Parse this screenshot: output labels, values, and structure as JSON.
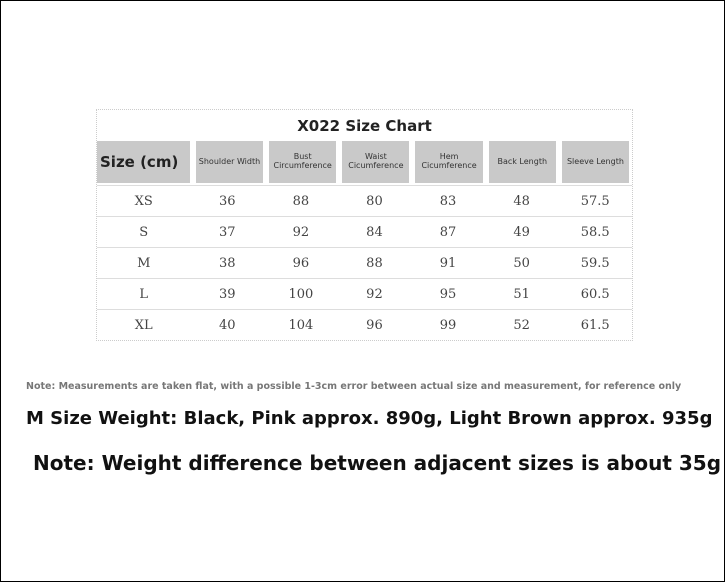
{
  "table": {
    "title": "X022 Size Chart",
    "headers": [
      "Size (cm)",
      "Shoulder Width",
      "Bust Circumference",
      "Waist Cicumference",
      "Hem Cicumference",
      "Back Length",
      "Sleeve Length"
    ],
    "rows": [
      [
        "XS",
        "36",
        "88",
        "80",
        "83",
        "48",
        "57.5"
      ],
      [
        "S",
        "37",
        "92",
        "84",
        "87",
        "49",
        "58.5"
      ],
      [
        "M",
        "38",
        "96",
        "88",
        "91",
        "50",
        "59.5"
      ],
      [
        "L",
        "39",
        "100",
        "92",
        "95",
        "51",
        "60.5"
      ],
      [
        "XL",
        "40",
        "104",
        "96",
        "99",
        "52",
        "61.5"
      ]
    ]
  },
  "notes": {
    "measurement": "Note: Measurements are taken flat, with a possible 1-3cm error between actual size and measurement, for reference only",
    "weight": "M Size Weight: Black, Pink approx. 890g, Light Brown approx. 935g",
    "difference": "Note: Weight difference between adjacent sizes is about 35g"
  }
}
